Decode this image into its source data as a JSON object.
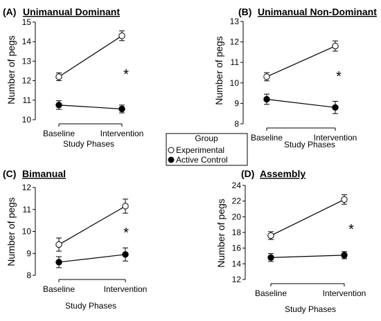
{
  "legend": {
    "title": "Group",
    "items": [
      {
        "label": "Experimental",
        "marker": "open"
      },
      {
        "label": "Active Control",
        "marker": "filled"
      }
    ]
  },
  "chart_data": [
    {
      "type": "line",
      "panel": "(A)",
      "title": "Unimanual Dominant",
      "xlabel": "Study Phases",
      "ylabel": "Number of pegs",
      "categories": [
        "Baseline",
        "Intervention"
      ],
      "ylim": [
        10,
        15
      ],
      "yticks": [
        10,
        11,
        12,
        13,
        14,
        15
      ],
      "annotation": "*",
      "series": [
        {
          "name": "Experimental",
          "marker": "open",
          "values": [
            12.2,
            14.3
          ],
          "error": [
            0.2,
            0.25
          ]
        },
        {
          "name": "Active Control",
          "marker": "filled",
          "values": [
            10.75,
            10.55
          ],
          "error": [
            0.22,
            0.2
          ]
        }
      ]
    },
    {
      "type": "line",
      "panel": "(B)",
      "title": "Unimanual Non-Dominant",
      "xlabel": "Study Phases",
      "ylabel": "Number of pegs",
      "categories": [
        "Baseline",
        "Intervention"
      ],
      "ylim": [
        8,
        13
      ],
      "yticks": [
        8,
        9,
        10,
        11,
        12,
        13
      ],
      "annotation": "*",
      "series": [
        {
          "name": "Experimental",
          "marker": "open",
          "values": [
            10.3,
            11.8
          ],
          "error": [
            0.2,
            0.25
          ]
        },
        {
          "name": "Active Control",
          "marker": "filled",
          "values": [
            9.2,
            8.8
          ],
          "error": [
            0.25,
            0.3
          ]
        }
      ]
    },
    {
      "type": "line",
      "panel": "(C)",
      "title": "Bimanual",
      "xlabel": "Study Phases",
      "ylabel": "Number of pegs",
      "categories": [
        "Baseline",
        "Intervention"
      ],
      "ylim": [
        8,
        12
      ],
      "yticks": [
        8,
        9,
        10,
        11,
        12
      ],
      "annotation": "*",
      "series": [
        {
          "name": "Experimental",
          "marker": "open",
          "values": [
            9.4,
            11.15
          ],
          "error": [
            0.3,
            0.32
          ]
        },
        {
          "name": "Active Control",
          "marker": "filled",
          "values": [
            8.6,
            8.95
          ],
          "error": [
            0.25,
            0.3
          ]
        }
      ]
    },
    {
      "type": "line",
      "panel": "(D)",
      "title": "Assembly",
      "xlabel": "Study Phases",
      "ylabel": "Number of pegs",
      "categories": [
        "Baseline",
        "Intervention"
      ],
      "ylim": [
        12,
        24
      ],
      "yticks": [
        12,
        14,
        16,
        18,
        20,
        22,
        24
      ],
      "annotation": "*",
      "series": [
        {
          "name": "Experimental",
          "marker": "open",
          "values": [
            17.6,
            22.2
          ],
          "error": [
            0.5,
            0.6
          ]
        },
        {
          "name": "Active Control",
          "marker": "filled",
          "values": [
            14.8,
            15.1
          ],
          "error": [
            0.5,
            0.45
          ]
        }
      ]
    }
  ]
}
